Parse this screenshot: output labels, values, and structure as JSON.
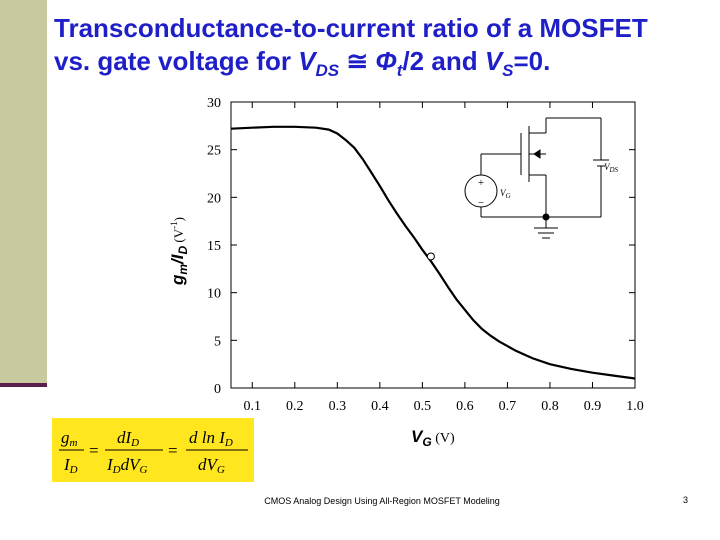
{
  "slide": {
    "title_line1": "Transconductance-to-current ratio of a MOSFET",
    "title_line2_prefix": "vs. gate voltage for ",
    "title_vds": "V",
    "title_vds_sub": "DS",
    "title_approx": " ≅ ",
    "title_phi": "Φ",
    "title_phi_sub": "t",
    "title_over2": "/2 and ",
    "title_vs": "V",
    "title_vs_sub": "S",
    "title_vs_end": "=0.",
    "footer_text": "CMOS Analog Design Using All-Region MOSFET Modeling",
    "page_number": "3",
    "accent_color": "#1f1fc8",
    "sidebar_color": "#c9c9a0",
    "formula_bg": "#ffe61e"
  },
  "formula": {
    "lhs_num": "g",
    "lhs_num_sub": "m",
    "lhs_den": "I",
    "lhs_den_sub": "D",
    "mid_num": "dI",
    "mid_num_sub": "D",
    "mid_den_a": "I",
    "mid_den_a_sub": "D",
    "mid_den_b": "dV",
    "mid_den_b_sub": "G",
    "rhs_num": "d ln I",
    "rhs_num_sub": "D",
    "rhs_den": "dV",
    "rhs_den_sub": "G",
    "equals": "="
  },
  "circuit": {
    "vds_label": "V",
    "vds_sub": "DS",
    "vg_label": "V",
    "vg_sub": "G",
    "plus": "+",
    "minus": "−"
  },
  "chart_data": {
    "type": "line",
    "xlabel": "V",
    "xlabel_sub": "G",
    "xlabel_unit": " (V)",
    "ylabel_main": "g",
    "ylabel_sub_m": "m",
    "ylabel_mid": "/I",
    "ylabel_sub_d": "D",
    "ylabel_unit": " (V",
    "ylabel_unit_exp": "-1",
    "ylabel_unit_close": ")",
    "xlim": [
      0.05,
      1.0
    ],
    "ylim": [
      0,
      30
    ],
    "xticks": [
      "0.1",
      "0.2",
      "0.3",
      "0.4",
      "0.5",
      "0.6",
      "0.7",
      "0.8",
      "0.9",
      "1.0"
    ],
    "yticks": [
      "0",
      "5",
      "10",
      "15",
      "20",
      "25",
      "30"
    ],
    "series": [
      {
        "x": [
          0.05,
          0.1,
          0.15,
          0.2,
          0.25,
          0.28,
          0.3,
          0.32,
          0.34,
          0.36,
          0.38,
          0.4,
          0.42,
          0.44,
          0.46,
          0.48,
          0.5,
          0.52,
          0.54,
          0.56,
          0.58,
          0.6,
          0.62,
          0.64,
          0.66,
          0.68,
          0.7,
          0.72,
          0.74,
          0.76,
          0.8,
          0.85,
          0.9,
          0.95,
          1.0
        ],
        "y": [
          27.2,
          27.3,
          27.4,
          27.4,
          27.3,
          27.1,
          26.7,
          26.0,
          25.2,
          24.0,
          22.6,
          21.2,
          19.7,
          18.3,
          17.0,
          15.8,
          14.5,
          13.3,
          12.0,
          10.6,
          9.3,
          8.2,
          7.1,
          6.2,
          5.5,
          4.9,
          4.4,
          3.9,
          3.5,
          3.1,
          2.5,
          2.0,
          1.6,
          1.3,
          1.0
        ]
      }
    ],
    "marker_point": {
      "x": 0.52,
      "y": 13.8
    },
    "grid": false
  }
}
